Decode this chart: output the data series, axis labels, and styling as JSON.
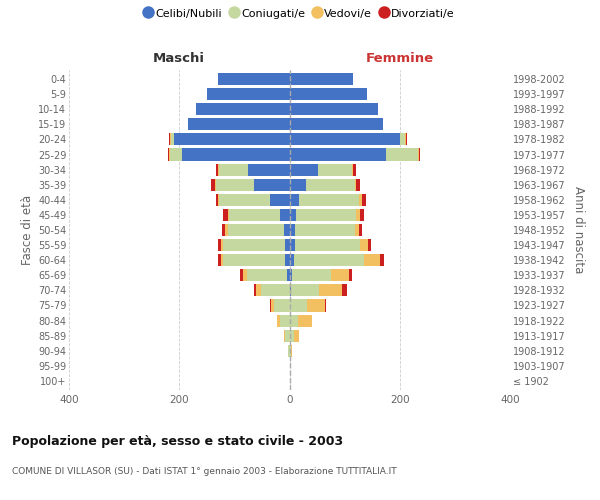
{
  "age_groups": [
    "100+",
    "95-99",
    "90-94",
    "85-89",
    "80-84",
    "75-79",
    "70-74",
    "65-69",
    "60-64",
    "55-59",
    "50-54",
    "45-49",
    "40-44",
    "35-39",
    "30-34",
    "25-29",
    "20-24",
    "15-19",
    "10-14",
    "5-9",
    "0-4"
  ],
  "birth_years": [
    "≤ 1902",
    "1903-1907",
    "1908-1912",
    "1913-1917",
    "1918-1922",
    "1923-1927",
    "1928-1932",
    "1933-1937",
    "1938-1942",
    "1943-1947",
    "1948-1952",
    "1953-1957",
    "1958-1962",
    "1963-1967",
    "1968-1972",
    "1973-1977",
    "1978-1982",
    "1983-1987",
    "1988-1992",
    "1993-1997",
    "1998-2002"
  ],
  "males_celibi": [
    0,
    0,
    0,
    0,
    0,
    0,
    0,
    5,
    8,
    8,
    10,
    18,
    35,
    65,
    75,
    195,
    210,
    185,
    170,
    150,
    130
  ],
  "males_coniugati": [
    0,
    0,
    2,
    8,
    18,
    28,
    52,
    72,
    112,
    112,
    102,
    92,
    92,
    68,
    52,
    22,
    5,
    0,
    0,
    0,
    0
  ],
  "males_vedovi": [
    0,
    0,
    0,
    2,
    5,
    5,
    8,
    8,
    5,
    5,
    5,
    2,
    2,
    2,
    2,
    2,
    2,
    0,
    0,
    0,
    0
  ],
  "males_divorziati": [
    0,
    0,
    0,
    0,
    0,
    2,
    5,
    5,
    5,
    5,
    5,
    8,
    5,
    8,
    5,
    2,
    2,
    0,
    0,
    0,
    0
  ],
  "females_nubili": [
    0,
    0,
    0,
    0,
    0,
    0,
    2,
    4,
    8,
    10,
    10,
    12,
    18,
    30,
    52,
    175,
    200,
    170,
    160,
    140,
    115
  ],
  "females_coniugate": [
    0,
    0,
    2,
    8,
    16,
    32,
    52,
    72,
    128,
    118,
    108,
    108,
    108,
    88,
    62,
    58,
    10,
    0,
    0,
    0,
    0
  ],
  "females_vedove": [
    0,
    0,
    2,
    10,
    25,
    32,
    42,
    32,
    28,
    14,
    8,
    8,
    5,
    2,
    2,
    2,
    2,
    0,
    0,
    0,
    0
  ],
  "females_divorziate": [
    0,
    0,
    0,
    0,
    0,
    2,
    8,
    5,
    8,
    5,
    5,
    8,
    8,
    8,
    5,
    2,
    2,
    0,
    0,
    0,
    0
  ],
  "colors_celibi": "#4472C4",
  "colors_coniugati": "#C5D8A0",
  "colors_vedovi": "#F2C060",
  "colors_divorziati": "#CC2020",
  "xlim": 400,
  "title": "Popolazione per età, sesso e stato civile - 2003",
  "subtitle": "COMUNE DI VILLASOR (SU) - Dati ISTAT 1° gennaio 2003 - Elaborazione TUTTITALIA.IT",
  "ylabel_left": "Fasce di età",
  "ylabel_right": "Anni di nascita",
  "label_maschi": "Maschi",
  "label_femmine": "Femmine",
  "legend_labels": [
    "Celibi/Nubili",
    "Coniugati/e",
    "Vedovi/e",
    "Divorziati/e"
  ],
  "bg_color": "#FFFFFF",
  "grid_color": "#CCCCCC",
  "text_color": "#666666",
  "maschi_color": "#333333",
  "femmine_color": "#CC3333"
}
